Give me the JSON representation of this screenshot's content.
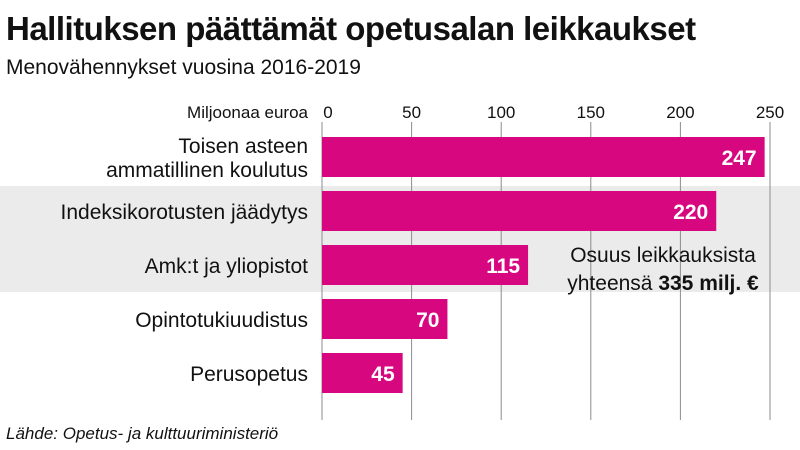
{
  "header": {
    "title": "Hallituksen päättämät opetusalan leikkaukset",
    "subtitle": "Menovähennykset vuosina 2016-2019"
  },
  "footer": {
    "source": "Lähde: Opetus- ja kulttuuriministeriö"
  },
  "colors": {
    "bar": "#d6077f",
    "band": "#ebebeb",
    "grid": "#8c8c8c"
  },
  "chart_data": {
    "type": "bar",
    "orientation": "horizontal",
    "title": "Hallituksen päättämät opetusalan leikkaukset",
    "subtitle": "Menovähennykset vuosina 2016-2019",
    "xlabel": "Miljoonaa euroa",
    "ylabel": "",
    "xlim": [
      0,
      250
    ],
    "ticks": [
      0,
      50,
      100,
      150,
      200,
      250
    ],
    "grid": true,
    "categories": [
      [
        "Toisen asteen",
        "ammatillinen koulutus"
      ],
      [
        "Indeksikorotusten jäädytys"
      ],
      [
        "Amk:t ja yliopistot"
      ],
      [
        "Opintotukiuudistus"
      ],
      [
        "Perusopetus"
      ]
    ],
    "values": [
      247,
      220,
      115,
      70,
      45
    ],
    "annotation": {
      "line1": "Osuus leikkauksista",
      "line2_prefix": "yhteensä ",
      "line2_bold": "335 milj. €"
    }
  }
}
